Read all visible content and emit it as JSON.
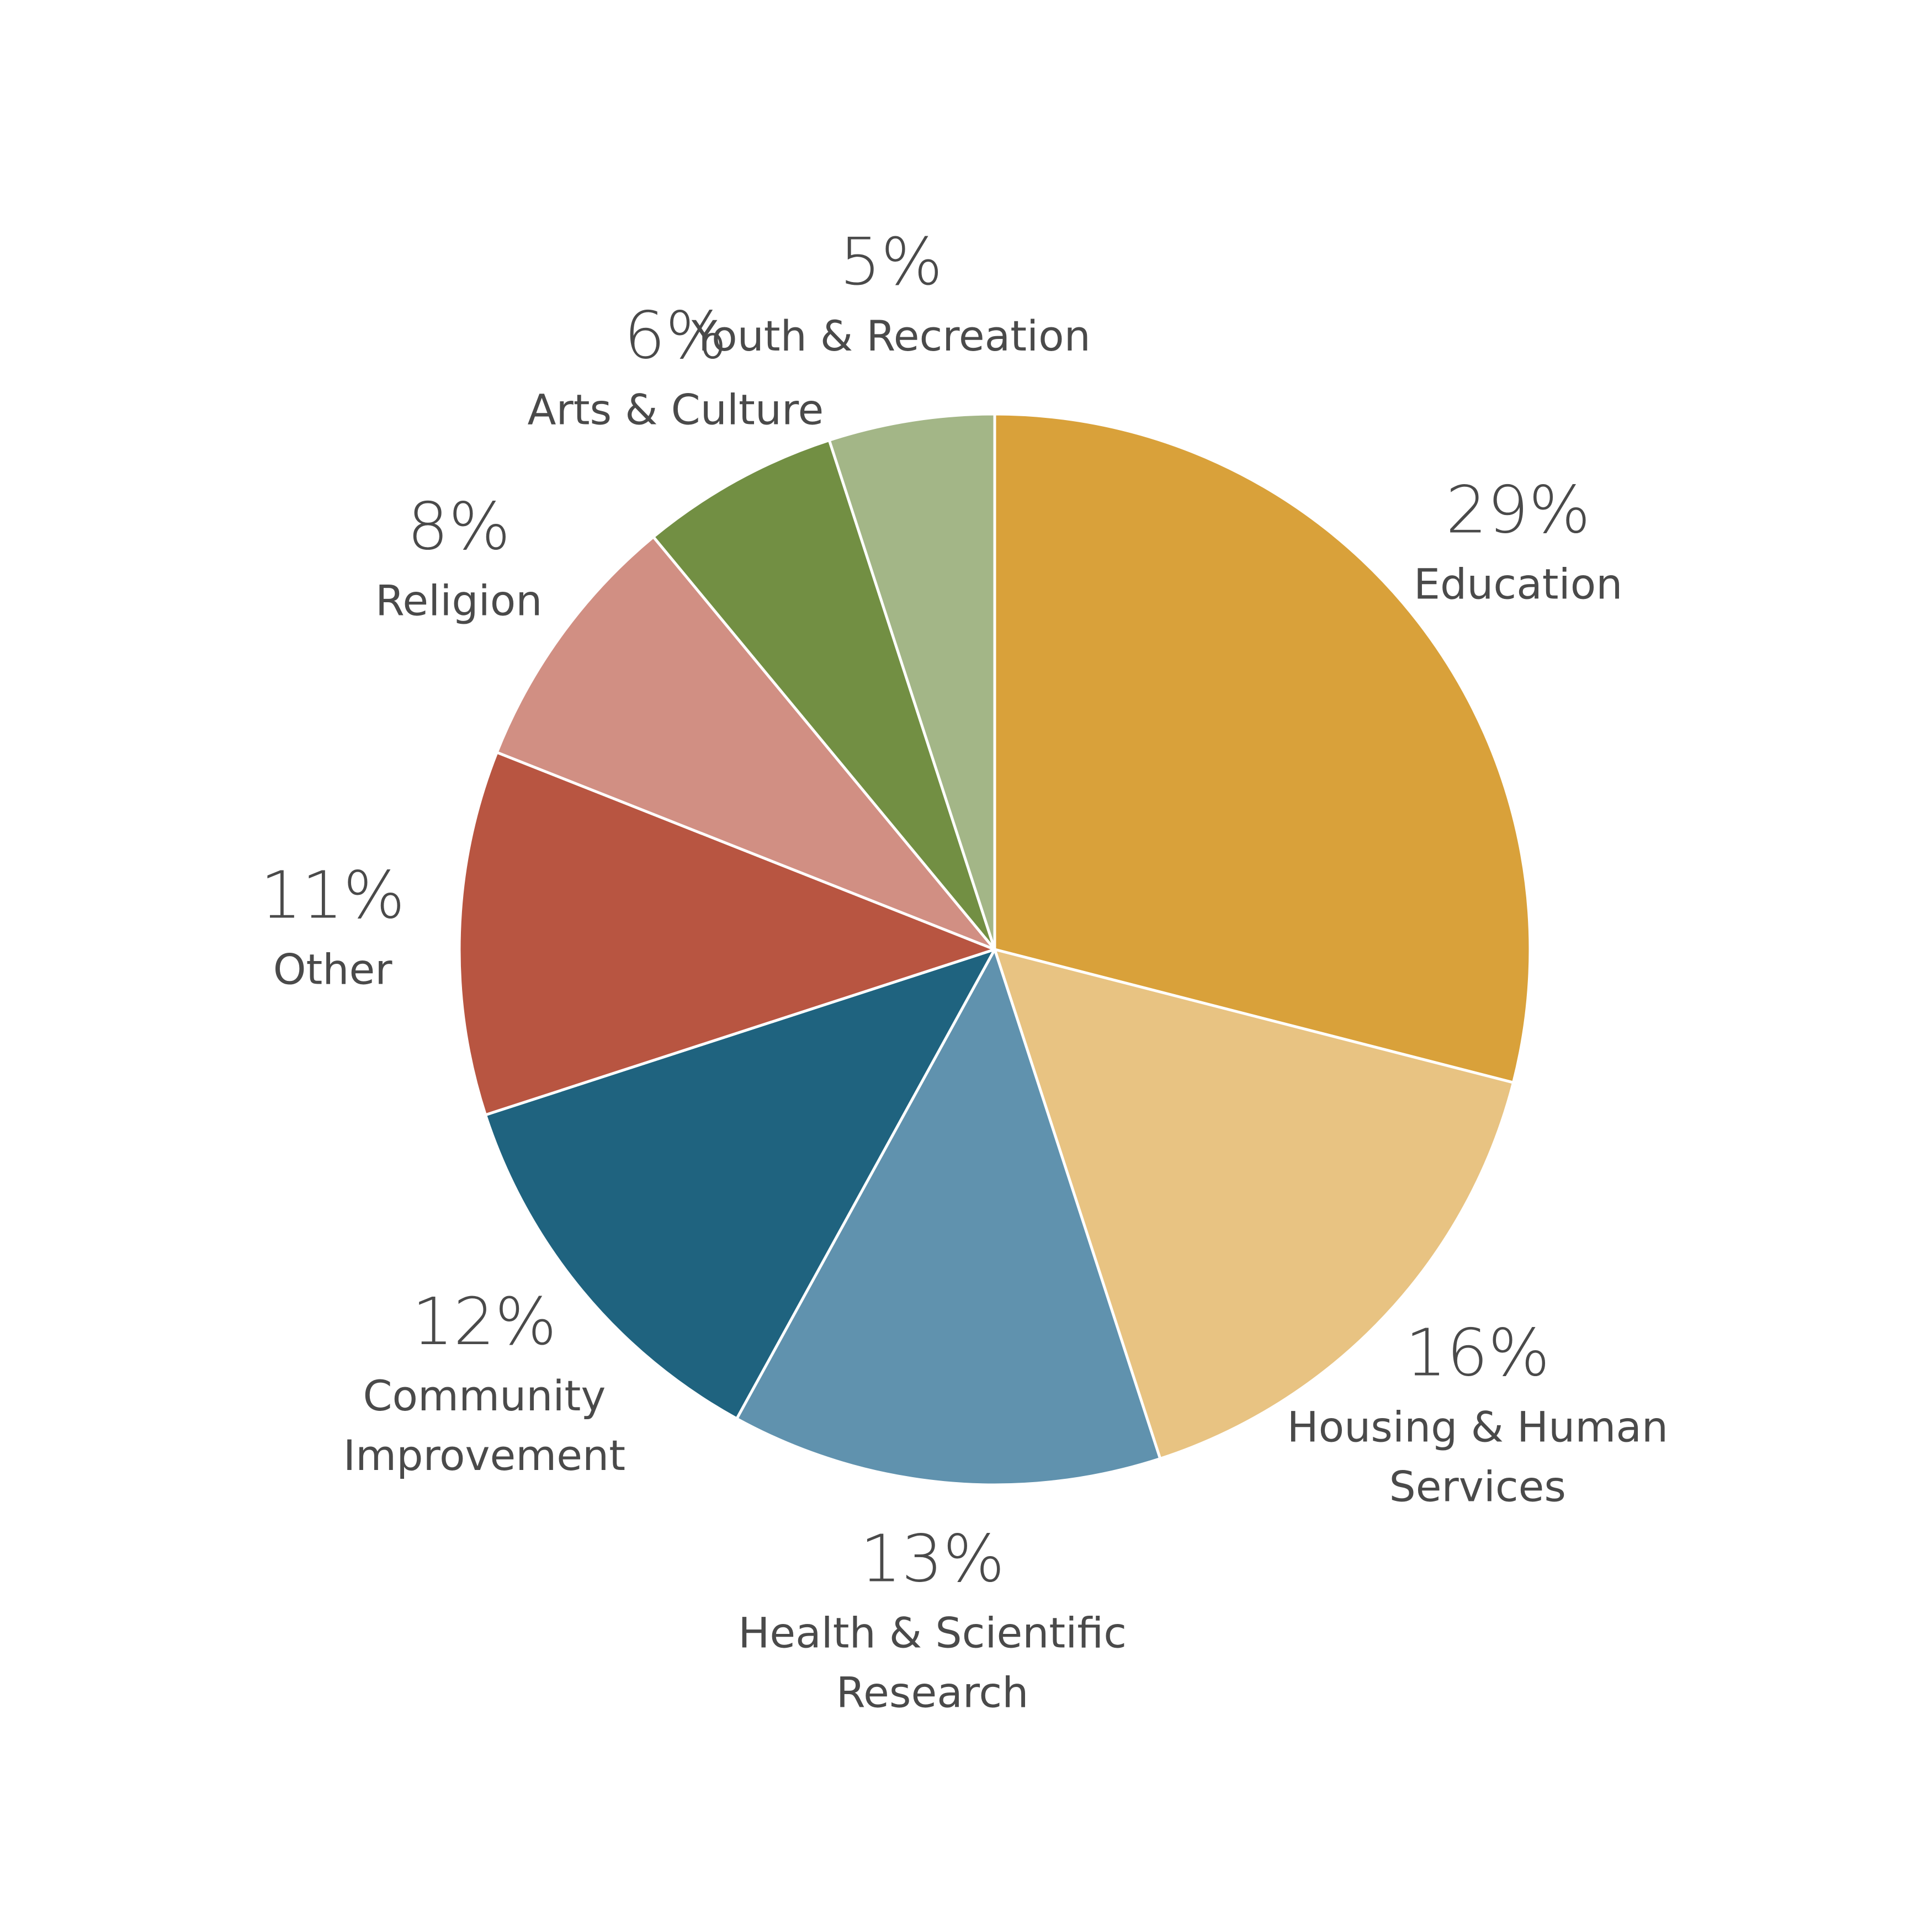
{
  "chart_data": {
    "type": "pie",
    "start": "top",
    "direction": "clockwise",
    "title": "",
    "slices": [
      {
        "value": 29,
        "label": "29%",
        "category": [
          "Education"
        ],
        "color": "#D9A13A"
      },
      {
        "value": 16,
        "label": "16%",
        "category": [
          "Housing & Human",
          "Services"
        ],
        "color": "#E8C382"
      },
      {
        "value": 13,
        "label": "13%",
        "category": [
          "Health & Scientific",
          "Research"
        ],
        "color": "#6092AE"
      },
      {
        "value": 12,
        "label": "12%",
        "category": [
          "Community",
          "Improvement"
        ],
        "color": "#1F637F"
      },
      {
        "value": 11,
        "label": "11%",
        "category": [
          "Other"
        ],
        "color": "#B85541"
      },
      {
        "value": 8,
        "label": "8%",
        "category": [
          "Religion"
        ],
        "color": "#D18F83"
      },
      {
        "value": 6,
        "label": "6%",
        "category": [
          "Arts & Culture"
        ],
        "color": "#728F43"
      },
      {
        "value": 5,
        "label": "5%",
        "category": [
          "Youth & Recreation"
        ],
        "color": "#A3B687"
      }
    ],
    "text_color": "#4A4A4A",
    "legend": "none"
  }
}
